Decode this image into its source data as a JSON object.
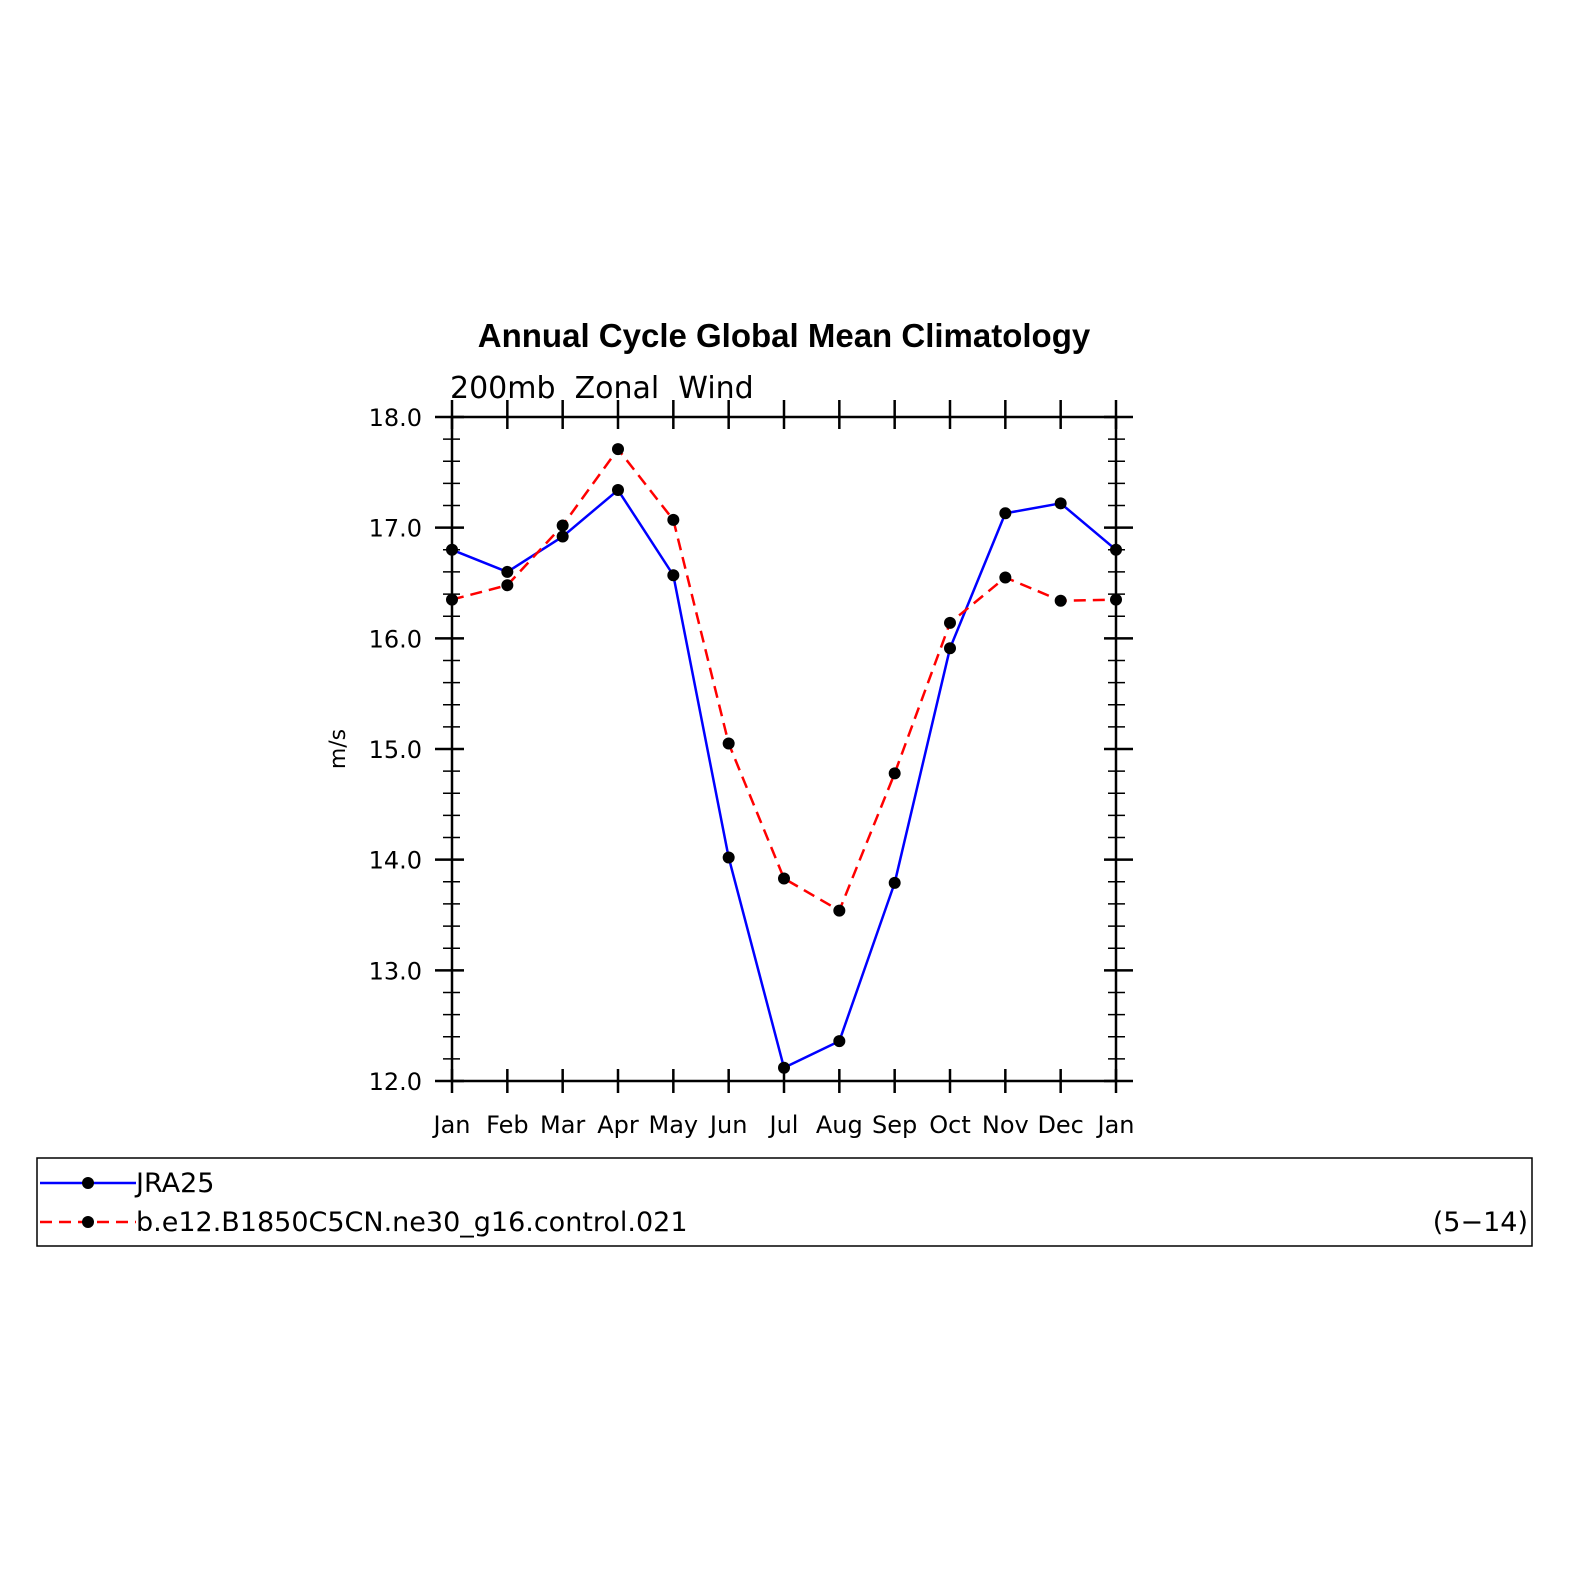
{
  "chart_data": {
    "type": "line",
    "title": "Annual Cycle Global Mean Climatology",
    "subtitle": "200mb  Zonal  Wind",
    "ylabel": "m/s",
    "xlabel": "",
    "categories": [
      "Jan",
      "Feb",
      "Mar",
      "Apr",
      "May",
      "Jun",
      "Jul",
      "Aug",
      "Sep",
      "Oct",
      "Nov",
      "Dec",
      "Jan"
    ],
    "ylim": [
      12.0,
      18.0
    ],
    "yticks": [
      "12.0",
      "13.0",
      "14.0",
      "15.0",
      "16.0",
      "17.0",
      "18.0"
    ],
    "series": [
      {
        "name": "JRA25",
        "color": "#0000ff",
        "dash": "solid",
        "values": [
          16.8,
          16.6,
          16.92,
          17.34,
          16.57,
          14.02,
          12.12,
          12.36,
          13.79,
          15.91,
          17.13,
          17.22,
          16.8
        ]
      },
      {
        "name": "b.e12.B1850C5CN.ne30_g16.control.021",
        "color": "#ff0000",
        "dash": "dashed",
        "values": [
          16.35,
          16.48,
          17.02,
          17.71,
          17.07,
          15.05,
          13.83,
          13.54,
          14.78,
          16.14,
          16.55,
          16.34,
          16.35
        ]
      }
    ],
    "legend_note": "(5−14)",
    "grid": false,
    "legend_position": "bottom"
  }
}
